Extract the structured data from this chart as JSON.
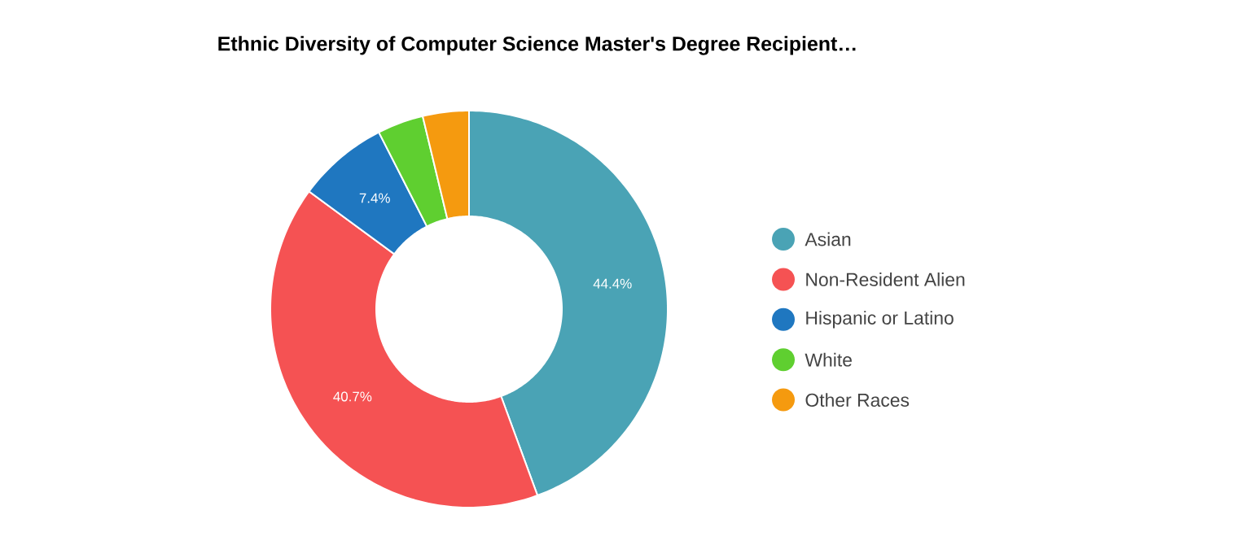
{
  "chart_data": {
    "type": "donut",
    "title": "Ethnic Diversity of Computer Science Master's Degree Recipient…",
    "categories": [
      "Asian",
      "Non-Resident Alien",
      "Hispanic or Latino",
      "White",
      "Other Races"
    ],
    "values": [
      44.4,
      40.7,
      7.4,
      3.75,
      3.75
    ],
    "value_labels": [
      "44.4%",
      "40.7%",
      "7.4%",
      null,
      null
    ],
    "colors": [
      "#4aa3b5",
      "#f55253",
      "#1f77c0",
      "#5fcf30",
      "#f59a0f"
    ],
    "legend": "right"
  }
}
